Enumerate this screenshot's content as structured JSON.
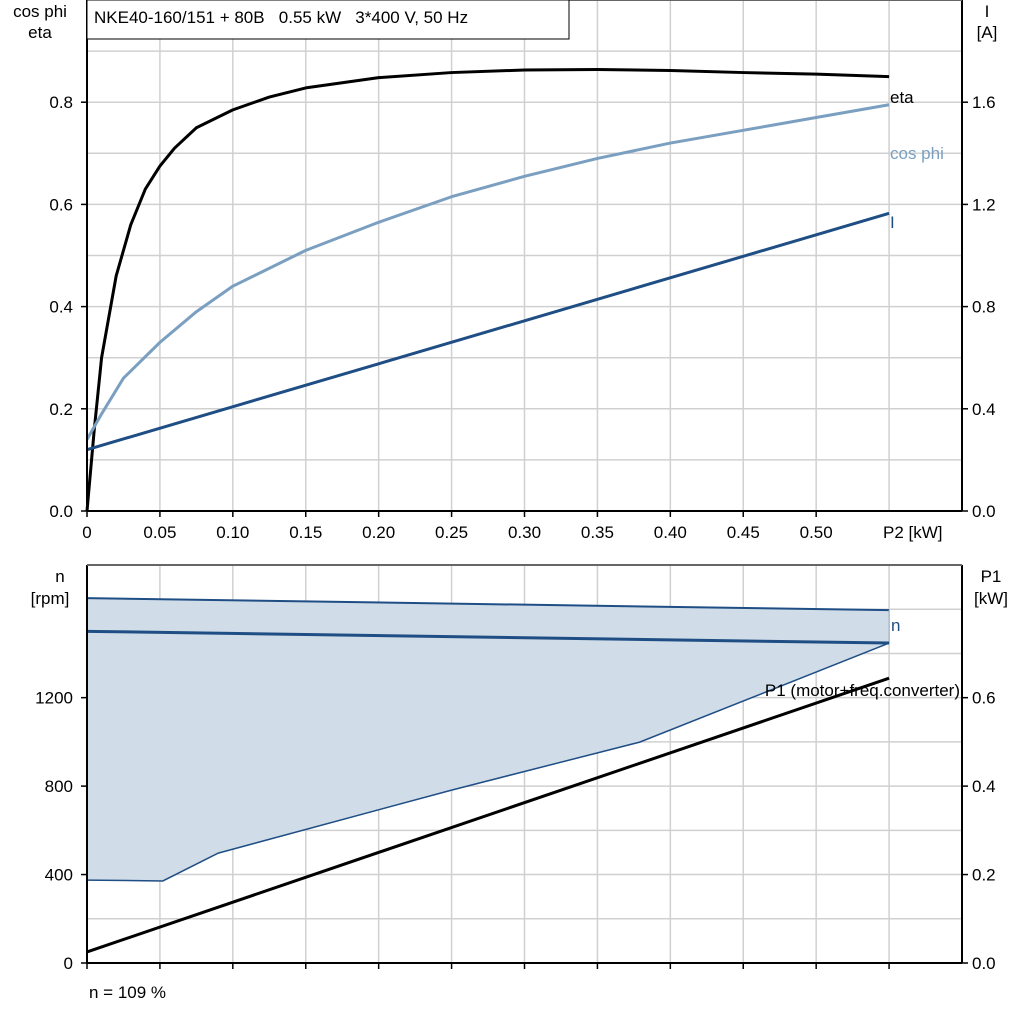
{
  "chart_data": [
    {
      "type": "line",
      "title": "NKE40-160/151 + 80B   0.55 kW   3*400 V, 50 Hz",
      "xlabel": "P2 [kW]",
      "ylabel_left": [
        "cos phi",
        "eta"
      ],
      "ylabel_right": [
        "I",
        "[A]"
      ],
      "xlim": [
        0,
        0.6
      ],
      "ylim_left": [
        0,
        1.0
      ],
      "ylim_right": [
        0,
        2.0
      ],
      "grid": true,
      "x_ticks": [
        "0",
        "0.05",
        "0.10",
        "0.15",
        "0.20",
        "0.25",
        "0.30",
        "0.35",
        "0.40",
        "0.45",
        "0.50"
      ],
      "y_ticks_left": [
        "0.0",
        "0.2",
        "0.4",
        "0.6",
        "0.8"
      ],
      "y_ticks_right": [
        "0.0",
        "0.4",
        "0.8",
        "1.2",
        "1.6"
      ],
      "series": [
        {
          "name": "eta",
          "axis": "left",
          "color": "#000000",
          "x": [
            0,
            0.005,
            0.01,
            0.02,
            0.03,
            0.04,
            0.05,
            0.06,
            0.075,
            0.1,
            0.125,
            0.15,
            0.2,
            0.25,
            0.3,
            0.35,
            0.4,
            0.45,
            0.5,
            0.55
          ],
          "y": [
            0,
            0.16,
            0.3,
            0.46,
            0.56,
            0.63,
            0.675,
            0.71,
            0.75,
            0.785,
            0.81,
            0.828,
            0.848,
            0.858,
            0.863,
            0.864,
            0.862,
            0.858,
            0.855,
            0.85
          ]
        },
        {
          "name": "cos phi",
          "axis": "left",
          "color": "#7a9fc0",
          "x": [
            0,
            0.01,
            0.025,
            0.05,
            0.075,
            0.1,
            0.15,
            0.2,
            0.25,
            0.3,
            0.35,
            0.4,
            0.45,
            0.5,
            0.55
          ],
          "y": [
            0.14,
            0.19,
            0.26,
            0.33,
            0.39,
            0.44,
            0.51,
            0.565,
            0.615,
            0.655,
            0.69,
            0.72,
            0.745,
            0.77,
            0.795
          ]
        },
        {
          "name": "I",
          "axis": "right",
          "color": "#1f4e85",
          "x": [
            0,
            0.55
          ],
          "y": [
            0.24,
            1.165
          ]
        }
      ]
    },
    {
      "type": "area",
      "ylabel_left": [
        "n",
        "[rpm]"
      ],
      "ylabel_right": [
        "P1",
        "[kW]"
      ],
      "xlim": [
        0,
        0.6
      ],
      "ylim_left": [
        0,
        1800
      ],
      "ylim_right": [
        0,
        0.9
      ],
      "grid": true,
      "y_ticks_left": [
        "0",
        "400",
        "800",
        "1200"
      ],
      "y_ticks_right": [
        "0.0",
        "0.2",
        "0.4",
        "0.6"
      ],
      "n_band": {
        "color": "#d0dce8",
        "upper": {
          "x": [
            0,
            0.55
          ],
          "y": [
            1650,
            1596
          ]
        },
        "lower": {
          "x": [
            0,
            0.052,
            0.09,
            0.25,
            0.379,
            0.55
          ],
          "y": [
            375,
            371,
            497,
            782,
            999,
            1447
          ]
        }
      },
      "series": [
        {
          "name": "n",
          "axis": "left",
          "color": "#1f4e85",
          "x": [
            0,
            0.55
          ],
          "y": [
            1500,
            1447
          ]
        },
        {
          "name": "P1 (motor+freq.converter)",
          "axis": "right",
          "color": "#000000",
          "x": [
            0,
            0.55
          ],
          "y": [
            0.025,
            0.644
          ]
        }
      ],
      "footnote": "n = 109 %"
    }
  ]
}
